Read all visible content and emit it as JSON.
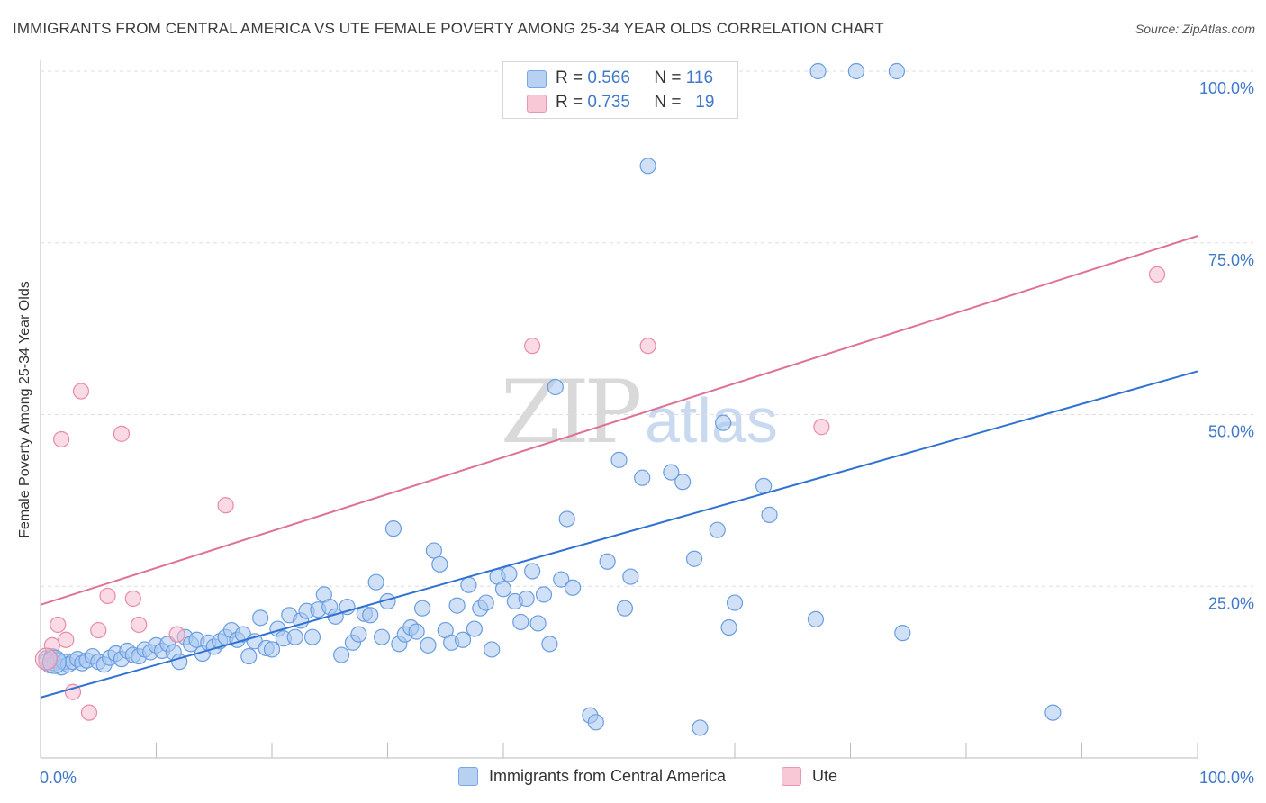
{
  "header": {
    "title": "IMMIGRANTS FROM CENTRAL AMERICA VS UTE FEMALE POVERTY AMONG 25-34 YEAR OLDS CORRELATION CHART",
    "source": "Source: ZipAtlas.com"
  },
  "legend": {
    "rows": [
      {
        "r_label": "R =",
        "r_value": "0.566",
        "n_label": "N =",
        "n_value": "116"
      },
      {
        "r_label": "R =",
        "r_value": "0.735",
        "n_label": "N =",
        "n_value": "19"
      }
    ]
  },
  "watermark": {
    "zip": "ZIP",
    "atlas": "atlas"
  },
  "colors": {
    "blue_fill": "#a9c8f0",
    "blue_stroke": "#6a9de0",
    "blue_line": "#2f72d2",
    "pink_fill": "#f6bccd",
    "pink_stroke": "#e88aa6",
    "pink_line": "#e07196",
    "axis_label": "#3f78c8",
    "grid": "#dddddd"
  },
  "chart_data": {
    "type": "scatter",
    "title": "IMMIGRANTS FROM CENTRAL AMERICA VS UTE FEMALE POVERTY AMONG 25-34 YEAR OLDS CORRELATION CHART",
    "xlabel": "",
    "ylabel": "Female Poverty Among 25-34 Year Olds",
    "xlim": [
      0,
      100
    ],
    "ylim": [
      0,
      100
    ],
    "x_tick_labels": [
      "0.0%",
      "100.0%"
    ],
    "y_ticks": [
      25,
      50,
      75,
      100
    ],
    "y_tick_labels": [
      "25.0%",
      "50.0%",
      "75.0%",
      "100.0%"
    ],
    "grid": true,
    "legend_position": "top-center",
    "series": [
      {
        "name": "Immigrants from Central America",
        "color": "#a9c8f0",
        "trend": {
          "x": [
            0,
            100
          ],
          "y": [
            8.8,
            56.3
          ]
        },
        "points": [
          [
            0.5,
            14.5
          ],
          [
            0.8,
            13.5
          ],
          [
            1.0,
            14.8
          ],
          [
            1.2,
            13.8
          ],
          [
            1.5,
            14.2
          ],
          [
            1.8,
            13.2
          ],
          [
            2.0,
            14.0
          ],
          [
            2.4,
            13.6
          ],
          [
            2.8,
            14.0
          ],
          [
            3.2,
            14.4
          ],
          [
            3.6,
            13.8
          ],
          [
            4.0,
            14.2
          ],
          [
            4.5,
            14.8
          ],
          [
            5.0,
            14.0
          ],
          [
            5.5,
            13.6
          ],
          [
            6.0,
            14.6
          ],
          [
            6.5,
            15.2
          ],
          [
            7.0,
            14.4
          ],
          [
            7.5,
            15.6
          ],
          [
            8.0,
            15.0
          ],
          [
            8.5,
            14.8
          ],
          [
            9.0,
            15.8
          ],
          [
            9.5,
            15.4
          ],
          [
            10.0,
            16.4
          ],
          [
            10.5,
            15.6
          ],
          [
            11.0,
            16.6
          ],
          [
            11.5,
            15.4
          ],
          [
            12.0,
            14.0
          ],
          [
            12.5,
            17.6
          ],
          [
            13.0,
            16.6
          ],
          [
            13.5,
            17.2
          ],
          [
            14.0,
            15.2
          ],
          [
            14.5,
            16.8
          ],
          [
            15.0,
            16.2
          ],
          [
            15.5,
            17.0
          ],
          [
            16.0,
            17.6
          ],
          [
            16.5,
            18.6
          ],
          [
            17.0,
            17.2
          ],
          [
            17.5,
            18.0
          ],
          [
            18.0,
            14.8
          ],
          [
            18.5,
            17.0
          ],
          [
            19.0,
            20.4
          ],
          [
            19.5,
            16.0
          ],
          [
            20.0,
            15.8
          ],
          [
            20.5,
            18.8
          ],
          [
            21.0,
            17.4
          ],
          [
            21.5,
            20.8
          ],
          [
            22.0,
            17.6
          ],
          [
            22.5,
            20.0
          ],
          [
            23.0,
            21.4
          ],
          [
            23.5,
            17.6
          ],
          [
            24.0,
            21.6
          ],
          [
            24.5,
            23.8
          ],
          [
            25.0,
            22.0
          ],
          [
            25.5,
            20.6
          ],
          [
            26.0,
            15.0
          ],
          [
            26.5,
            22.0
          ],
          [
            27.0,
            16.8
          ],
          [
            27.5,
            18.0
          ],
          [
            28.0,
            21.0
          ],
          [
            28.5,
            20.8
          ],
          [
            29.0,
            25.6
          ],
          [
            29.5,
            17.6
          ],
          [
            30.0,
            22.8
          ],
          [
            30.5,
            33.4
          ],
          [
            31.0,
            16.6
          ],
          [
            31.5,
            18.0
          ],
          [
            32.0,
            19.0
          ],
          [
            32.5,
            18.4
          ],
          [
            33.0,
            21.8
          ],
          [
            33.5,
            16.4
          ],
          [
            34.0,
            30.2
          ],
          [
            34.5,
            28.2
          ],
          [
            35.0,
            18.6
          ],
          [
            35.5,
            16.8
          ],
          [
            36.0,
            22.2
          ],
          [
            36.5,
            17.2
          ],
          [
            37.0,
            25.2
          ],
          [
            37.5,
            18.8
          ],
          [
            38.0,
            21.8
          ],
          [
            38.5,
            22.6
          ],
          [
            39.0,
            15.8
          ],
          [
            39.5,
            26.4
          ],
          [
            40.0,
            24.6
          ],
          [
            40.5,
            26.8
          ],
          [
            41.0,
            22.8
          ],
          [
            41.5,
            19.8
          ],
          [
            42.0,
            23.2
          ],
          [
            42.5,
            27.2
          ],
          [
            43.0,
            19.6
          ],
          [
            43.5,
            23.8
          ],
          [
            44.0,
            16.6
          ],
          [
            44.5,
            54.0
          ],
          [
            45.0,
            26.0
          ],
          [
            45.5,
            34.8
          ],
          [
            46.0,
            24.8
          ],
          [
            47.5,
            6.2
          ],
          [
            48.0,
            5.2
          ],
          [
            49.0,
            28.6
          ],
          [
            50.0,
            43.4
          ],
          [
            50.5,
            21.8
          ],
          [
            51.0,
            26.4
          ],
          [
            52.0,
            40.8
          ],
          [
            52.5,
            86.2
          ],
          [
            54.5,
            41.6
          ],
          [
            55.5,
            40.2
          ],
          [
            56.5,
            29.0
          ],
          [
            57.0,
            4.4
          ],
          [
            58.5,
            33.2
          ],
          [
            59.0,
            48.8
          ],
          [
            59.5,
            19.0
          ],
          [
            60.0,
            22.6
          ],
          [
            62.5,
            39.6
          ],
          [
            63.0,
            35.4
          ],
          [
            67.0,
            20.2
          ],
          [
            67.2,
            100
          ],
          [
            70.5,
            100
          ],
          [
            74.0,
            100
          ],
          [
            74.5,
            18.2
          ],
          [
            87.5,
            6.6
          ]
        ]
      },
      {
        "name": "Ute",
        "color": "#f6bccd",
        "trend": {
          "x": [
            0,
            100
          ],
          "y": [
            22.3,
            76.0
          ]
        },
        "points": [
          [
            0.5,
            14.0
          ],
          [
            1.0,
            16.4
          ],
          [
            1.5,
            19.4
          ],
          [
            1.8,
            46.4
          ],
          [
            2.2,
            17.2
          ],
          [
            2.8,
            9.6
          ],
          [
            3.5,
            53.4
          ],
          [
            4.2,
            6.6
          ],
          [
            5.0,
            18.6
          ],
          [
            5.8,
            23.6
          ],
          [
            7.0,
            47.2
          ],
          [
            8.0,
            23.2
          ],
          [
            8.5,
            19.4
          ],
          [
            11.8,
            18.0
          ],
          [
            16.0,
            36.8
          ],
          [
            42.5,
            60.0
          ],
          [
            52.5,
            60.0
          ],
          [
            67.5,
            48.2
          ],
          [
            96.5,
            70.4
          ]
        ]
      }
    ]
  },
  "bottom_legend": {
    "items": [
      {
        "label": "Immigrants from Central America"
      },
      {
        "label": "Ute"
      }
    ]
  }
}
